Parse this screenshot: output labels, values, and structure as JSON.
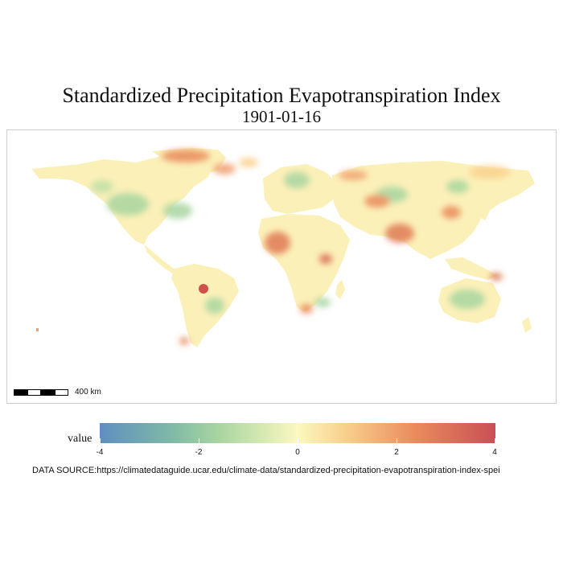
{
  "title": "Standardized Precipitation Evapotranspiration Index",
  "subtitle": "1901-01-16",
  "map": {
    "scale_label": "400 km"
  },
  "legend": {
    "title": "value",
    "ticks": [
      "-4",
      "-2",
      "0",
      "2",
      "4"
    ],
    "colors": [
      "#5e8fc1",
      "#a8d5a0",
      "#fbf8c0",
      "#f9d08e",
      "#e98a5c",
      "#c94f55"
    ]
  },
  "source": "DATA SOURCE:https://climatedataguide.ucar.edu/climate-data/standardized-precipitation-evapotranspiration-index-spei"
}
